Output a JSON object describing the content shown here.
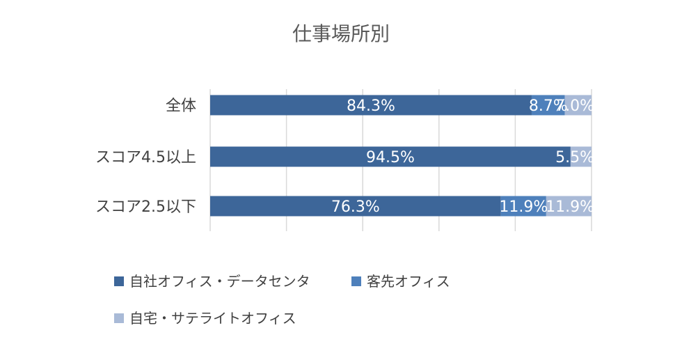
{
  "chart_data": {
    "type": "bar",
    "orientation": "horizontal",
    "stacked": "percent",
    "title": "仕事場所別",
    "categories": [
      "全体",
      "スコア4.5以上",
      "スコア2.5以下"
    ],
    "series": [
      {
        "name": "自社オフィス・データセンタ",
        "color": "#3d6699",
        "values": [
          84.3,
          94.5,
          76.3
        ],
        "labels": [
          "84.3%",
          "94.5%",
          "76.3%"
        ]
      },
      {
        "name": "客先オフィス",
        "color": "#4e80bb",
        "values": [
          8.7,
          0,
          11.9
        ],
        "labels": [
          "8.7%",
          "",
          "11.9%"
        ]
      },
      {
        "name": "自宅・サテライトオフィス",
        "color": "#a9bad7",
        "values": [
          7.0,
          5.5,
          11.9
        ],
        "labels": [
          "7.0%",
          "5.5%",
          "11.9%"
        ]
      }
    ],
    "xlim": [
      0,
      100
    ],
    "grid": true,
    "legend_position": "bottom"
  }
}
